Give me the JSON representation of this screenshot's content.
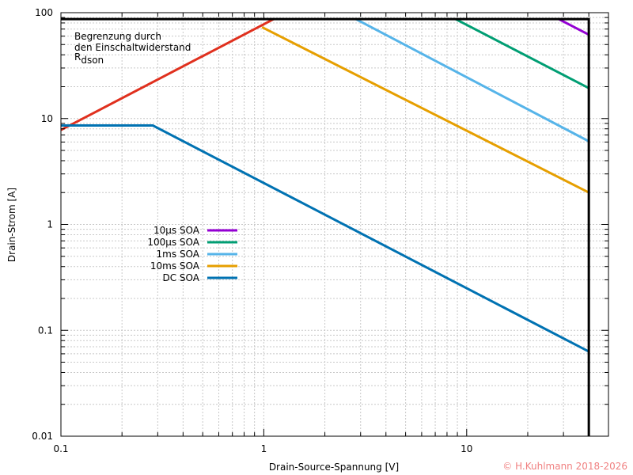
{
  "chart_data": {
    "type": "line",
    "title": "",
    "xlabel": "Drain-Source-Spannung [V]",
    "ylabel": "Drain-Strom [A]",
    "xscale": "log",
    "yscale": "log",
    "xlim": [
      0.1,
      50
    ],
    "ylim": [
      0.01,
      100
    ],
    "xticks": [
      "0.1",
      "1",
      "10"
    ],
    "yticks": [
      "0.01",
      "0.1",
      "1",
      "10",
      "100"
    ],
    "grid": true,
    "legend_position": "left-center",
    "limits": {
      "max_current_A": 87,
      "max_voltage_V": 40
    },
    "annotation": {
      "line1": "Begrenzung durch",
      "line2": "den Einschaltwiderstand",
      "line3_main": "R",
      "line3_sub": "dson"
    },
    "series": [
      {
        "name": "Rdson limit",
        "color": "#e0301e",
        "x": [
          0.1,
          1.12
        ],
        "y": [
          7.8,
          87
        ]
      },
      {
        "name": "10µs SOA",
        "color": "#9400d3",
        "x": [
          28.4,
          40
        ],
        "y": [
          87,
          62
        ]
      },
      {
        "name": "100µs SOA",
        "color": "#009e73",
        "x": [
          8.8,
          40
        ],
        "y": [
          87,
          19.4
        ]
      },
      {
        "name": "1ms SOA",
        "color": "#56b4e9",
        "x": [
          2.84,
          40
        ],
        "y": [
          87,
          6.1
        ]
      },
      {
        "name": "10ms SOA",
        "color": "#e69f00",
        "x": [
          0.98,
          40
        ],
        "y": [
          73,
          2.0
        ]
      },
      {
        "name": "DC SOA",
        "color": "#0072b2",
        "x": [
          0.1,
          0.284,
          40
        ],
        "y": [
          8.6,
          8.6,
          0.063
        ]
      }
    ]
  },
  "legend": [
    {
      "label": "10µs SOA",
      "color": "#9400d3"
    },
    {
      "label": "100µs SOA",
      "color": "#009e73"
    },
    {
      "label": "1ms SOA",
      "color": "#56b4e9"
    },
    {
      "label": "10ms SOA",
      "color": "#e69f00"
    },
    {
      "label": "DC SOA",
      "color": "#0072b2"
    }
  ],
  "copyright": "© H.Kuhlmann 2018-2026"
}
